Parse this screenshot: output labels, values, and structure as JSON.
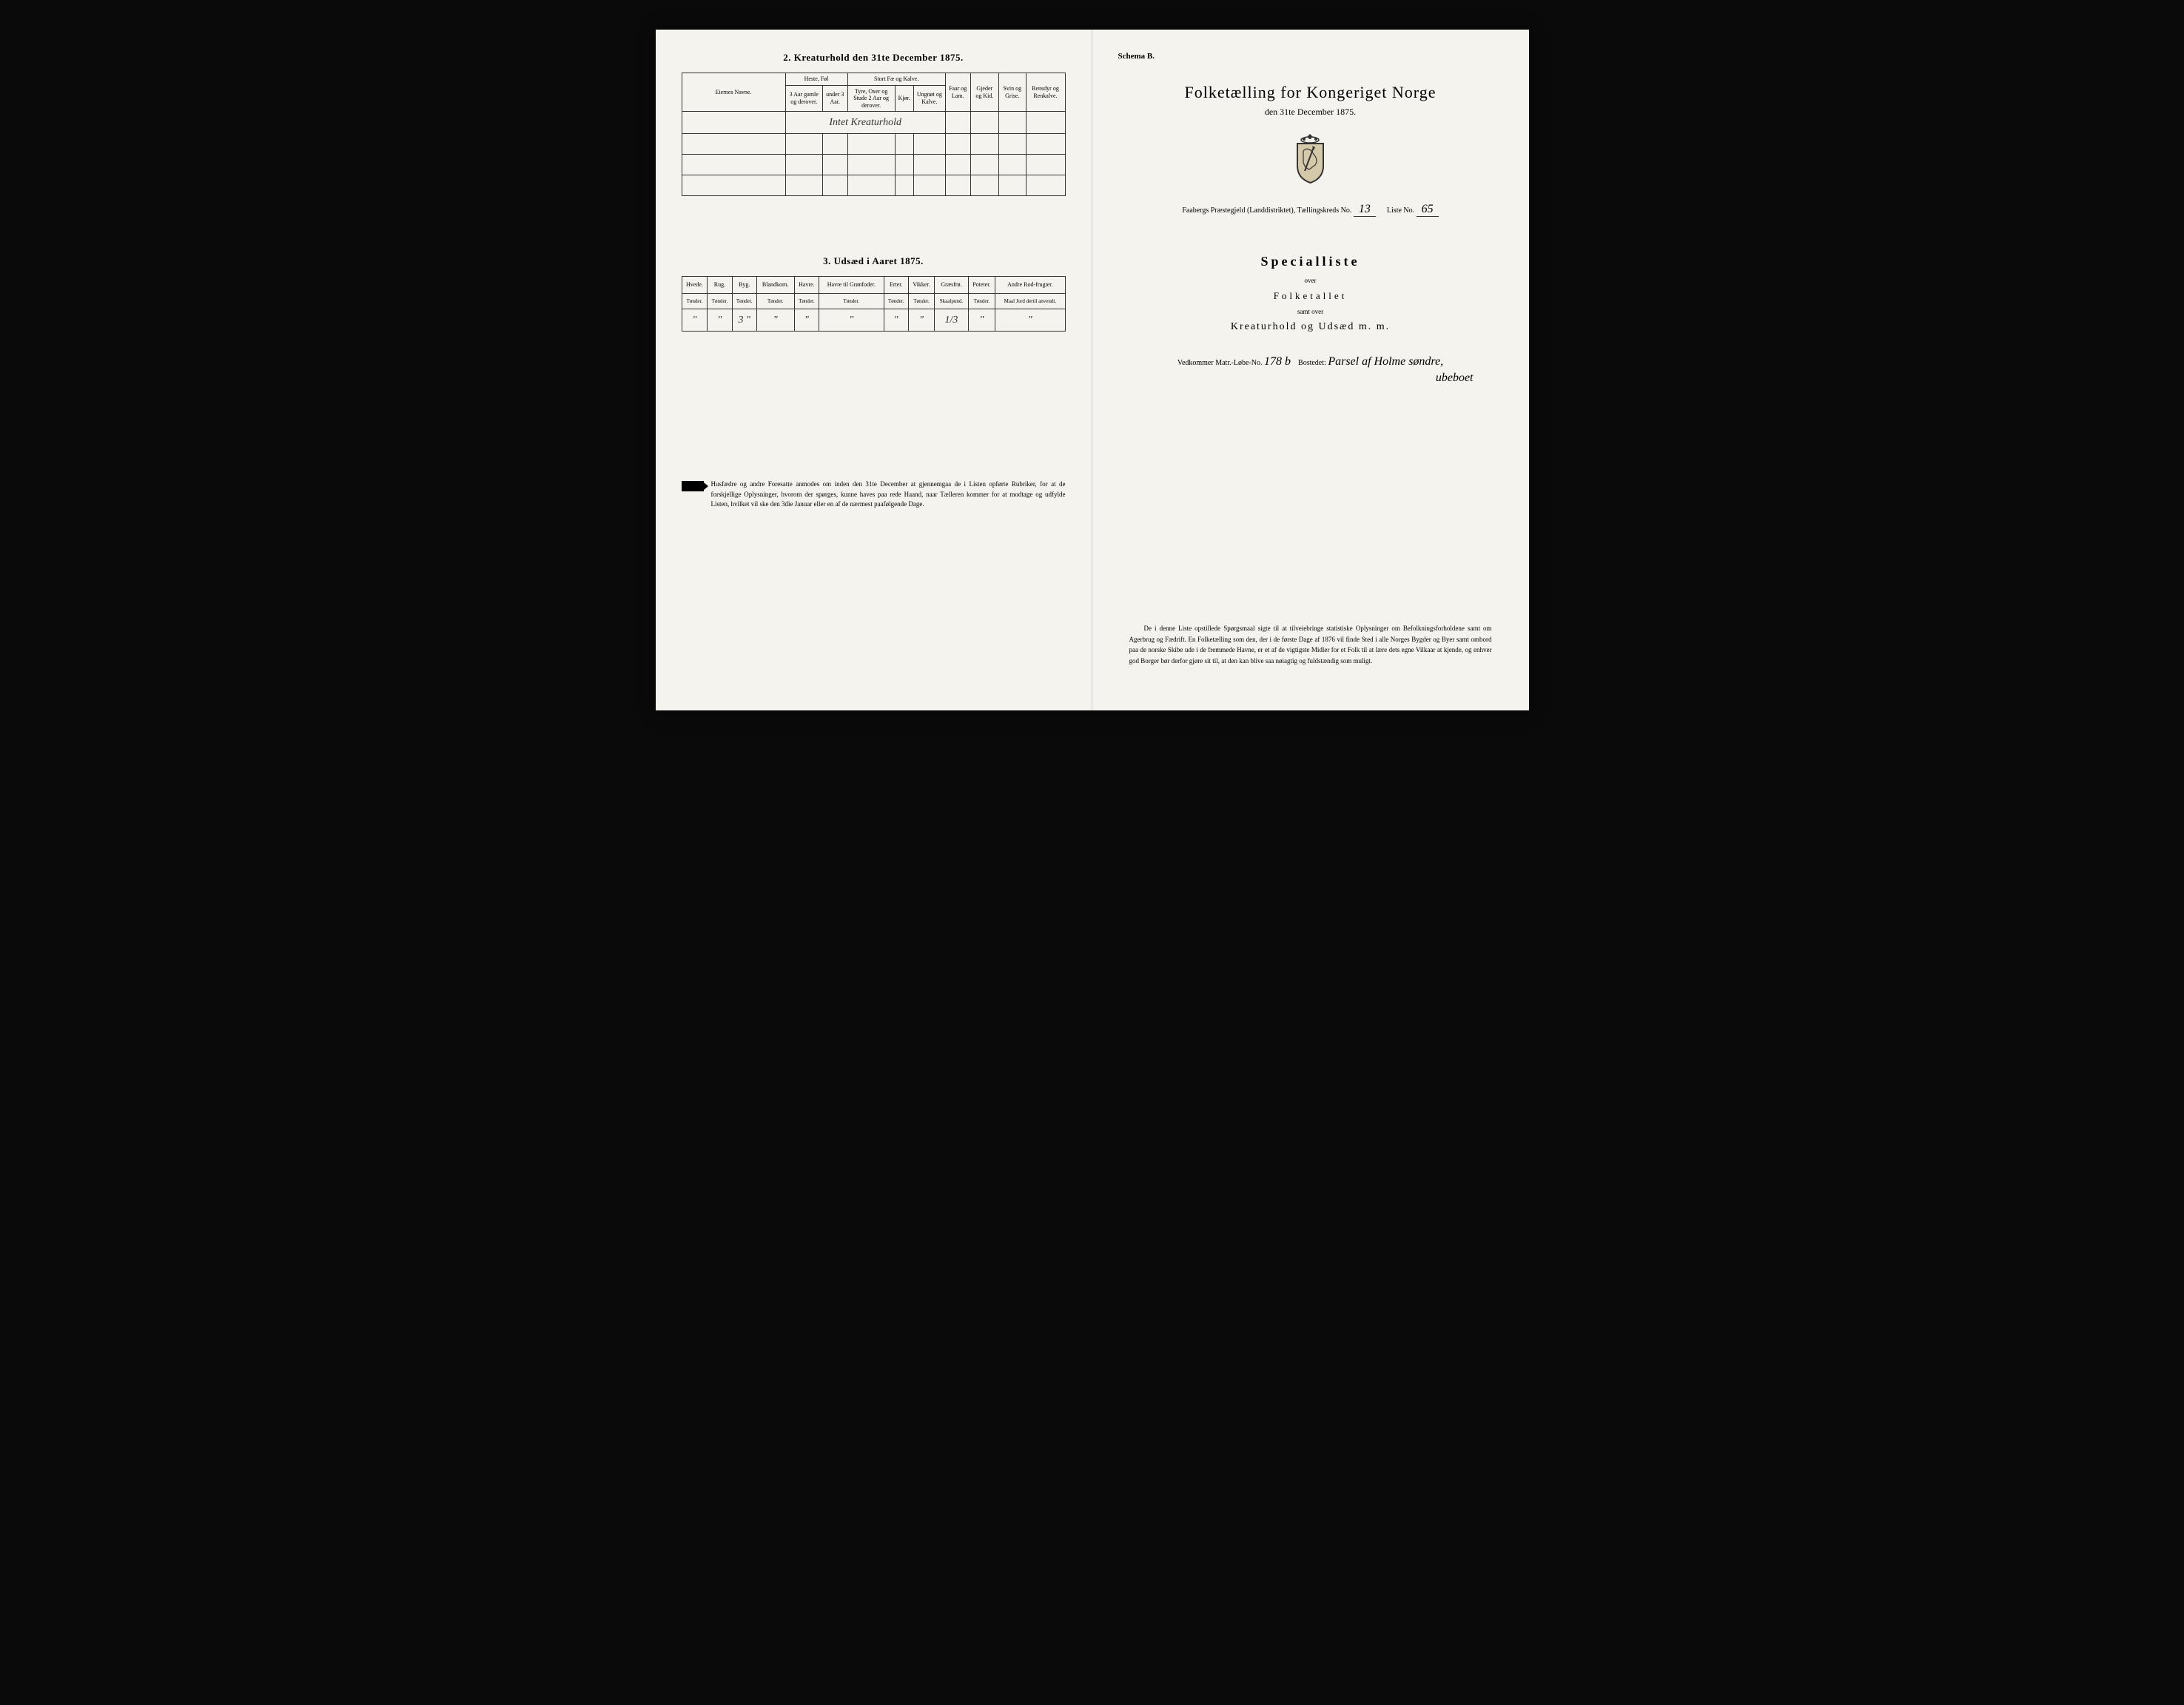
{
  "left": {
    "section2_title": "2. Kreaturhold den 31te December 1875.",
    "table2": {
      "eier_header": "Eiernes Navne.",
      "group_heste": "Heste, Føl",
      "group_stort": "Stort Fæ og Kalve.",
      "col_h1": "3 Aar gamle og derover.",
      "col_h2": "under 3 Aar.",
      "col_s1": "Tyre, Oxer og Stude 2 Aar og derover.",
      "col_s2": "Kjør.",
      "col_s3": "Ungnøt og Kalve.",
      "col_faar": "Faar og Lam.",
      "col_gjed": "Gjeder og Kid.",
      "col_svin": "Svin og Grise.",
      "col_ren": "Rensdyr og Renkalve.",
      "row1_hw": "Intet Kreaturhold"
    },
    "section3_title": "3. Udsæd i Aaret 1875.",
    "table3": {
      "cols": [
        {
          "h": "Hvede.",
          "s": "Tønder."
        },
        {
          "h": "Rug.",
          "s": "Tønder."
        },
        {
          "h": "Byg.",
          "s": "Tønder."
        },
        {
          "h": "Blandkorn.",
          "s": "Tønder."
        },
        {
          "h": "Havre.",
          "s": "Tønder."
        },
        {
          "h": "Havre til Grønfoder.",
          "s": "Tønder."
        },
        {
          "h": "Erter.",
          "s": "Tønder."
        },
        {
          "h": "Vikker.",
          "s": "Tønder."
        },
        {
          "h": "Græsfrø.",
          "s": "Skaalpund."
        },
        {
          "h": "Poteter.",
          "s": "Tønder."
        },
        {
          "h": "Andre Rod-frugter.",
          "s": "Maal Jord dertil anvendt."
        }
      ],
      "row": [
        "\"",
        "\"",
        "3 \"",
        "\"",
        "\"",
        "\"",
        "\"",
        "\"",
        "1/3",
        "\"",
        "\""
      ]
    },
    "note": "Husfædre og andre Foresatte anmodes om inden den 31te December at gjennemgaa de i Listen opførte Rubriker, for at de forskjellige Oplysninger, hvorom der spørges, kunne haves paa rede Haand, naar Tælleren kommer for at modtage og udfylde Listen, hvilket vil ske den 3die Januar eller en af de nærmest paafølgende Dage."
  },
  "right": {
    "schema": "Schema B.",
    "title": "Folketælling for Kongeriget Norge",
    "subtitle": "den 31te December 1875.",
    "district_pre": "Faabergs Præstegjeld (Landdistriktet), Tællingskreds No.",
    "district_no": "13",
    "liste_label": "Liste No.",
    "liste_no": "65",
    "special": "Specialliste",
    "over": "over",
    "folke": "Folketallet",
    "samt": "samt over",
    "kreatur": "Kreaturhold og Udsæd m. m.",
    "vedkommer_pre": "Vedkommer Matr.-Løbe-No.",
    "matr_no": "178 b",
    "bosted_label": "Bostedet:",
    "bosted_hw": "Parsel af Holme søndre,",
    "bosted_hw2": "ubeboet",
    "bottom_note": "De i denne Liste opstillede Spørgsmaal sigte til at tilveiebringe statistiske Oplysninger om Befolkningsforholdene samt om Agerbrug og Fædrift. En Folketælling som den, der i de første Dage af 1876 vil finde Sted i alle Norges Bygder og Byer samt ombord paa de norske Skibe ude i de fremmede Havne, er et af de vigtigste Midler for et Folk til at lære dets egne Vilkaar at kjende, og enhver god Borger bør derfor gjøre sit til, at den kan blive saa nøiagtig og fuldstændig som muligt."
  },
  "colors": {
    "paper": "#f5f3ee",
    "ink": "#1a1a1a",
    "border": "#333333"
  }
}
